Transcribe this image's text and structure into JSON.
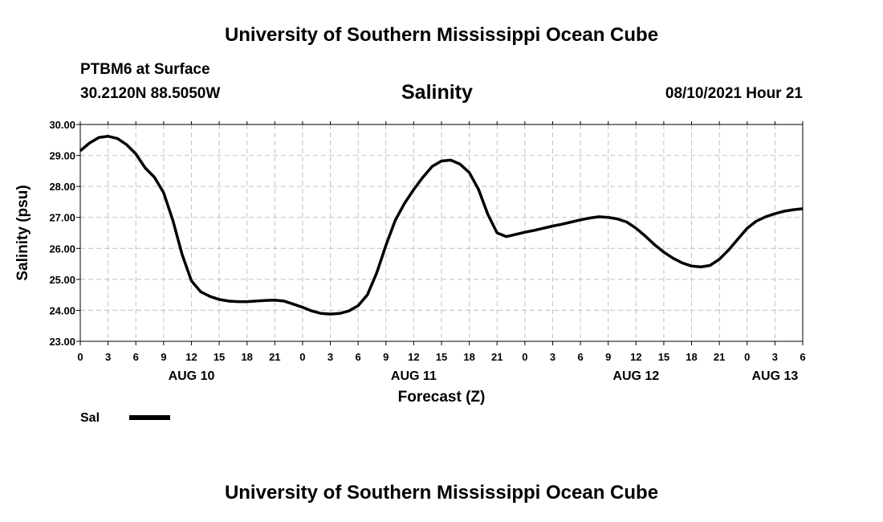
{
  "header": {
    "title": "University of Southern Mississippi Ocean Cube",
    "station": "PTBM6 at Surface",
    "coordinates": "30.2120N  88.5050W",
    "chart_title": "Salinity",
    "datetime": "08/10/2021 Hour 21"
  },
  "footer": {
    "title": "University of Southern Mississippi Ocean Cube"
  },
  "colors": {
    "line": "#000000",
    "grid": "#c0c0c0"
  },
  "chart_data": {
    "type": "line",
    "title": "Salinity",
    "xlabel": "Forecast (Z)",
    "ylabel": "Salinity (psu)",
    "ylim": [
      23.0,
      30.0
    ],
    "xlim": [
      0,
      78
    ],
    "x_unit": "hours since AUG 10 00Z",
    "y_ticks": [
      "30.00",
      "29.00",
      "28.00",
      "27.00",
      "26.00",
      "25.00",
      "24.00",
      "23.00"
    ],
    "y_tick_values": [
      30,
      29,
      28,
      27,
      26,
      25,
      24,
      23
    ],
    "x_ticks": [
      {
        "h": 0,
        "label": "0"
      },
      {
        "h": 3,
        "label": "3"
      },
      {
        "h": 6,
        "label": "6"
      },
      {
        "h": 9,
        "label": "9"
      },
      {
        "h": 12,
        "label": "12"
      },
      {
        "h": 15,
        "label": "15"
      },
      {
        "h": 18,
        "label": "18"
      },
      {
        "h": 21,
        "label": "21"
      },
      {
        "h": 24,
        "label": "0"
      },
      {
        "h": 27,
        "label": "3"
      },
      {
        "h": 30,
        "label": "6"
      },
      {
        "h": 33,
        "label": "9"
      },
      {
        "h": 36,
        "label": "12"
      },
      {
        "h": 39,
        "label": "15"
      },
      {
        "h": 42,
        "label": "18"
      },
      {
        "h": 45,
        "label": "21"
      },
      {
        "h": 48,
        "label": "0"
      },
      {
        "h": 51,
        "label": "3"
      },
      {
        "h": 54,
        "label": "6"
      },
      {
        "h": 57,
        "label": "9"
      },
      {
        "h": 60,
        "label": "12"
      },
      {
        "h": 63,
        "label": "15"
      },
      {
        "h": 66,
        "label": "18"
      },
      {
        "h": 69,
        "label": "21"
      },
      {
        "h": 72,
        "label": "0"
      },
      {
        "h": 75,
        "label": "3"
      },
      {
        "h": 78,
        "label": "6"
      }
    ],
    "date_labels": [
      {
        "h": 12,
        "label": "AUG 10"
      },
      {
        "h": 36,
        "label": "AUG 11"
      },
      {
        "h": 60,
        "label": "AUG 12"
      },
      {
        "h": 75,
        "label": "AUG 13"
      }
    ],
    "legend": [
      {
        "name": "Sal"
      }
    ],
    "series": [
      {
        "name": "Sal",
        "x": [
          0,
          1,
          2,
          3,
          4,
          5,
          6,
          7,
          8,
          9,
          10,
          11,
          12,
          13,
          14,
          15,
          16,
          17,
          18,
          19,
          20,
          21,
          22,
          23,
          24,
          25,
          26,
          27,
          28,
          29,
          30,
          31,
          32,
          33,
          34,
          35,
          36,
          37,
          38,
          39,
          40,
          41,
          42,
          43,
          44,
          45,
          46,
          47,
          48,
          49,
          50,
          51,
          52,
          53,
          54,
          55,
          56,
          57,
          58,
          59,
          60,
          61,
          62,
          63,
          64,
          65,
          66,
          67,
          68,
          69,
          70,
          71,
          72,
          73,
          74,
          75,
          76,
          77,
          78
        ],
        "values": [
          29.15,
          29.4,
          29.58,
          29.62,
          29.55,
          29.35,
          29.05,
          28.6,
          28.3,
          27.8,
          26.9,
          25.8,
          24.95,
          24.6,
          24.45,
          24.35,
          24.3,
          24.28,
          24.28,
          24.3,
          24.32,
          24.33,
          24.3,
          24.2,
          24.1,
          23.98,
          23.9,
          23.88,
          23.9,
          23.98,
          24.15,
          24.5,
          25.2,
          26.1,
          26.9,
          27.45,
          27.9,
          28.3,
          28.65,
          28.82,
          28.85,
          28.72,
          28.45,
          27.9,
          27.1,
          26.5,
          26.38,
          26.45,
          26.52,
          26.58,
          26.65,
          26.72,
          26.78,
          26.85,
          26.92,
          26.98,
          27.02,
          27.0,
          26.95,
          26.85,
          26.65,
          26.4,
          26.12,
          25.88,
          25.68,
          25.53,
          25.43,
          25.4,
          25.45,
          25.65,
          25.95,
          26.3,
          26.65,
          26.88,
          27.02,
          27.12,
          27.2,
          27.25,
          27.28
        ]
      }
    ]
  }
}
